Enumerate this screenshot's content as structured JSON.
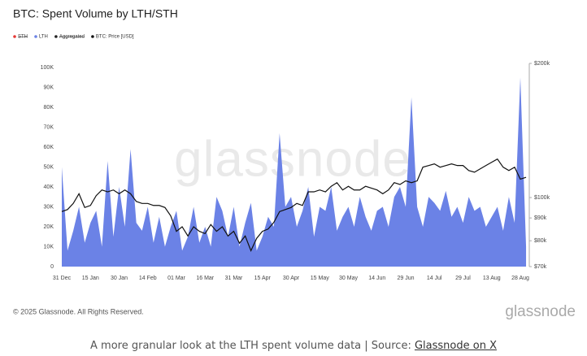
{
  "chart_data": {
    "type": "area",
    "title": "BTC: Spent Volume by LTH/STH",
    "log_y2": true,
    "categories": [
      "31 Dec",
      null,
      null,
      null,
      null,
      "15 Jan",
      null,
      null,
      null,
      null,
      "30 Jan",
      null,
      null,
      null,
      null,
      "14 Feb",
      null,
      null,
      null,
      null,
      "01 Mar",
      null,
      null,
      null,
      null,
      "16 Mar",
      null,
      null,
      null,
      null,
      "31 Mar",
      null,
      null,
      null,
      null,
      "15 Apr",
      null,
      null,
      null,
      null,
      "30 Apr",
      null,
      null,
      null,
      null,
      "15 May",
      null,
      null,
      null,
      null,
      "30 May",
      null,
      null,
      null,
      null,
      "14 Jun",
      null,
      null,
      null,
      null,
      "29 Jun",
      null,
      null,
      null,
      null,
      "14 Jul",
      null,
      null,
      null,
      null,
      "29 Jul",
      null,
      null,
      null,
      null,
      "13 Aug",
      null,
      null,
      null,
      null,
      "28 Aug",
      null
    ],
    "series": [
      {
        "name": "STH",
        "color": "#e53935",
        "hidden": true
      },
      {
        "name": "LTH",
        "color": "#6b82e6",
        "values": [
          50000,
          8000,
          18000,
          30000,
          12000,
          22000,
          28000,
          10000,
          53000,
          15000,
          40000,
          20000,
          59000,
          22000,
          18000,
          30000,
          12000,
          25000,
          10000,
          20000,
          28000,
          8000,
          15000,
          30000,
          12000,
          20000,
          10000,
          35000,
          28000,
          15000,
          30000,
          10000,
          22000,
          32000,
          8000,
          15000,
          25000,
          20000,
          67000,
          30000,
          35000,
          20000,
          28000,
          40000,
          15000,
          30000,
          28000,
          40000,
          18000,
          25000,
          30000,
          20000,
          35000,
          25000,
          18000,
          28000,
          30000,
          20000,
          35000,
          40000,
          30000,
          85000,
          30000,
          20000,
          35000,
          32000,
          28000,
          38000,
          25000,
          30000,
          22000,
          35000,
          28000,
          30000,
          20000,
          25000,
          30000,
          18000,
          35000,
          22000,
          95000,
          10000
        ]
      },
      {
        "name": "Aggregated",
        "color": "#222222",
        "hidden": true
      },
      {
        "name": "BTC: Price [USD]",
        "color": "#111111",
        "axis": "y2",
        "values": [
          93000,
          94000,
          97000,
          102000,
          95000,
          96000,
          101000,
          104000,
          103000,
          104000,
          102000,
          104000,
          102000,
          98000,
          97000,
          97000,
          96000,
          96000,
          95000,
          91000,
          84000,
          86000,
          82000,
          86000,
          84000,
          83000,
          87000,
          84000,
          86000,
          82000,
          84000,
          79000,
          82000,
          76000,
          81000,
          84000,
          85000,
          88000,
          93000,
          94000,
          95000,
          97000,
          96000,
          103000,
          103000,
          104000,
          103000,
          106000,
          108000,
          104000,
          106000,
          104000,
          104000,
          106000,
          105000,
          104000,
          102000,
          104000,
          108000,
          107000,
          109000,
          108000,
          109000,
          117000,
          118000,
          119000,
          117000,
          118000,
          119000,
          118000,
          118000,
          115000,
          114000,
          116000,
          118000,
          120000,
          122000,
          117000,
          115000,
          117000,
          110000,
          111000
        ]
      }
    ],
    "ylim": [
      0,
      100000
    ],
    "yticks": [
      0,
      {
        "value": 10000,
        "label": "10K"
      },
      {
        "value": 20000,
        "label": "20K"
      },
      {
        "value": 30000,
        "label": "30K"
      },
      {
        "value": 40000,
        "label": "40K"
      },
      {
        "value": 50000,
        "label": "50K"
      },
      {
        "value": 60000,
        "label": "60K"
      },
      {
        "value": 70000,
        "label": "70K"
      },
      {
        "value": 80000,
        "label": "80K"
      },
      {
        "value": 90000,
        "label": "90K"
      },
      {
        "value": 100000,
        "label": "100K"
      }
    ],
    "y2lim": [
      70000,
      200000
    ],
    "y2ticks": [
      {
        "value": 70000,
        "label": "$70k"
      },
      {
        "value": 80000,
        "label": "$80k"
      },
      {
        "value": 90000,
        "label": "$90k"
      },
      {
        "value": 100000,
        "label": "$100k"
      },
      {
        "value": 200000,
        "label": "$200k"
      }
    ],
    "watermark": "glassnode"
  },
  "footer": "© 2025 Glassnode. All Rights Reserved.",
  "logo": "glassnode",
  "caption": "A more granular look at the LTH spent volume data | Source: ",
  "caption_link": "Glassnode on X"
}
